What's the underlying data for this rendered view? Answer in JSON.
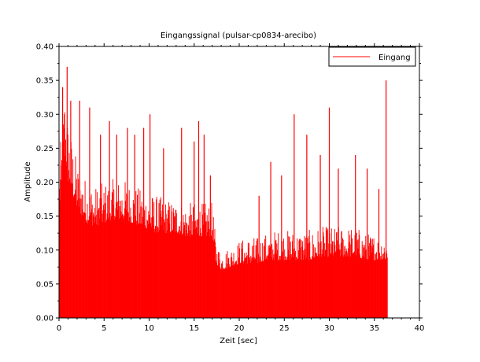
{
  "chart_data": {
    "type": "bar",
    "title": "Eingangssignal (pulsar-cp0834-arecibo)",
    "xlabel": "Zeit [sec]",
    "ylabel": "Amplitude",
    "xlim": [
      0,
      40
    ],
    "ylim": [
      0,
      0.4
    ],
    "xticks": [
      "0",
      "5",
      "10",
      "15",
      "20",
      "25",
      "30",
      "35",
      "40"
    ],
    "yticks": [
      "0.00",
      "0.05",
      "0.10",
      "0.15",
      "0.20",
      "0.25",
      "0.30",
      "0.35",
      "0.40"
    ],
    "grid": false,
    "legend_position": "top-right",
    "series": [
      {
        "name": "Eingang",
        "color": "#ff0000",
        "x_end": 36.4,
        "sample_step": 0.05,
        "envelope": {
          "t": [
            0,
            0.3,
            0.6,
            1.0,
            2,
            3,
            4,
            5,
            6,
            7,
            8,
            9,
            10,
            11,
            12,
            13,
            14,
            15,
            16,
            17,
            17.4,
            18,
            19,
            20,
            21,
            22,
            23,
            24,
            25,
            26,
            27,
            28,
            29,
            30,
            31,
            32,
            33,
            34,
            35,
            36,
            36.4
          ],
          "base": [
            0.16,
            0.2,
            0.24,
            0.2,
            0.16,
            0.14,
            0.135,
            0.14,
            0.145,
            0.145,
            0.14,
            0.135,
            0.13,
            0.125,
            0.125,
            0.125,
            0.12,
            0.12,
            0.12,
            0.12,
            0.08,
            0.07,
            0.075,
            0.08,
            0.08,
            0.08,
            0.085,
            0.085,
            0.085,
            0.085,
            0.085,
            0.085,
            0.09,
            0.09,
            0.09,
            0.09,
            0.09,
            0.085,
            0.085,
            0.085,
            0.085
          ],
          "amp": [
            0.07,
            0.09,
            0.1,
            0.09,
            0.07,
            0.065,
            0.06,
            0.06,
            0.06,
            0.06,
            0.06,
            0.055,
            0.055,
            0.055,
            0.05,
            0.05,
            0.05,
            0.05,
            0.05,
            0.05,
            0.03,
            0.03,
            0.03,
            0.035,
            0.04,
            0.04,
            0.04,
            0.045,
            0.045,
            0.045,
            0.045,
            0.045,
            0.045,
            0.045,
            0.045,
            0.045,
            0.045,
            0.04,
            0.04,
            0.04,
            0.04
          ]
        },
        "peaks": [
          {
            "x": 0.4,
            "y": 0.34
          },
          {
            "x": 0.6,
            "y": 0.3
          },
          {
            "x": 0.9,
            "y": 0.37
          },
          {
            "x": 1.3,
            "y": 0.32
          },
          {
            "x": 2.3,
            "y": 0.32
          },
          {
            "x": 3.4,
            "y": 0.31
          },
          {
            "x": 4.6,
            "y": 0.27
          },
          {
            "x": 5.6,
            "y": 0.29
          },
          {
            "x": 6.4,
            "y": 0.27
          },
          {
            "x": 7.6,
            "y": 0.28
          },
          {
            "x": 8.4,
            "y": 0.27
          },
          {
            "x": 9.4,
            "y": 0.28
          },
          {
            "x": 10.1,
            "y": 0.3
          },
          {
            "x": 11.6,
            "y": 0.25
          },
          {
            "x": 13.6,
            "y": 0.28
          },
          {
            "x": 15.0,
            "y": 0.26
          },
          {
            "x": 15.5,
            "y": 0.29
          },
          {
            "x": 16.1,
            "y": 0.27
          },
          {
            "x": 16.8,
            "y": 0.21
          },
          {
            "x": 22.2,
            "y": 0.18
          },
          {
            "x": 23.5,
            "y": 0.23
          },
          {
            "x": 24.7,
            "y": 0.21
          },
          {
            "x": 26.1,
            "y": 0.3
          },
          {
            "x": 27.5,
            "y": 0.27
          },
          {
            "x": 29.0,
            "y": 0.24
          },
          {
            "x": 30.0,
            "y": 0.31
          },
          {
            "x": 31.0,
            "y": 0.22
          },
          {
            "x": 32.9,
            "y": 0.24
          },
          {
            "x": 34.2,
            "y": 0.22
          },
          {
            "x": 35.5,
            "y": 0.19
          },
          {
            "x": 36.3,
            "y": 0.35
          }
        ]
      }
    ]
  }
}
